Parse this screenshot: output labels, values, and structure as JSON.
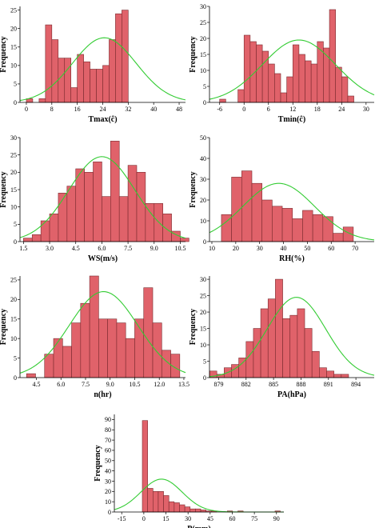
{
  "chart_data": [
    {
      "type": "bar",
      "xlabel": "Tmax(ĉ)",
      "ylabel": "Frequency",
      "xlim": [
        -2,
        50
      ],
      "ylim": [
        0,
        26
      ],
      "xticks": [
        0,
        8,
        16,
        24,
        32,
        40,
        48
      ],
      "yticks": [
        0,
        5,
        10,
        15,
        20,
        25
      ],
      "bins": {
        "start": 0,
        "width": 2
      },
      "values": [
        1,
        0,
        1,
        21,
        17,
        12,
        12,
        4,
        13,
        11,
        9,
        9,
        10,
        17,
        24,
        25,
        0
      ],
      "fit": {
        "mean": 24.5,
        "sd": 10.0,
        "peak": 17.5
      }
    },
    {
      "type": "bar",
      "xlabel": "Tmin(ĉ)",
      "ylabel": "Frequency",
      "xlim": [
        -8.5,
        32
      ],
      "ylim": [
        0,
        30
      ],
      "xticks": [
        -6,
        0,
        6,
        12,
        18,
        24,
        30
      ],
      "yticks": [
        0,
        5,
        10,
        15,
        20,
        25,
        30
      ],
      "bins": {
        "start": -6,
        "width": 1.5
      },
      "values": [
        1,
        0,
        0,
        4,
        21,
        19,
        18,
        16,
        12,
        9,
        3,
        8,
        18,
        15,
        13,
        12,
        19,
        17,
        29,
        11,
        8,
        2
      ],
      "fit": {
        "mean": 13.5,
        "sd": 9.0,
        "peak": 19.5
      }
    },
    {
      "type": "bar",
      "xlabel": "WS(m/s)",
      "ylabel": "Frequency",
      "xlim": [
        1.3,
        10.8
      ],
      "ylim": [
        0,
        30
      ],
      "xticks": [
        1.5,
        3.0,
        4.5,
        6.0,
        7.5,
        9.0,
        10.5
      ],
      "yticks": [
        0,
        5,
        10,
        15,
        20,
        25,
        30
      ],
      "bins": {
        "start": 1.5,
        "width": 0.5
      },
      "values": [
        1,
        2,
        6,
        8,
        14,
        16,
        21,
        20,
        23,
        13,
        29,
        13,
        22,
        20,
        11,
        11,
        8,
        3,
        1
      ],
      "fit": {
        "mean": 6.0,
        "sd": 1.9,
        "peak": 24.5
      }
    },
    {
      "type": "bar",
      "xlabel": "RH(%)",
      "ylabel": "Frequency",
      "xlim": [
        9,
        78
      ],
      "ylim": [
        0,
        50
      ],
      "xticks": [
        10,
        20,
        30,
        40,
        50,
        60,
        70
      ],
      "yticks": [
        0,
        10,
        20,
        30,
        40,
        50
      ],
      "bins": {
        "start": 14,
        "width": 4.25
      },
      "values": [
        13,
        31,
        34,
        28,
        20,
        17,
        16,
        11,
        15,
        13,
        12,
        4,
        7
      ],
      "fit": {
        "mean": 38,
        "sd": 15,
        "peak": 28
      }
    },
    {
      "type": "bar",
      "xlabel": "n(hr)",
      "ylabel": "Frequency",
      "xlim": [
        3.5,
        13.6
      ],
      "ylim": [
        0,
        26
      ],
      "xticks": [
        4.5,
        6.0,
        7.5,
        9.0,
        10.5,
        12.0,
        13.5
      ],
      "yticks": [
        0,
        5,
        10,
        15,
        20,
        25
      ],
      "bins": {
        "start": 3.9,
        "width": 0.55
      },
      "values": [
        1,
        0,
        6,
        10,
        8,
        14,
        19,
        26,
        15,
        15,
        14,
        10,
        15,
        23,
        14,
        7,
        6
      ],
      "fit": {
        "mean": 8.6,
        "sd": 2.1,
        "peak": 22
      }
    },
    {
      "type": "bar",
      "xlabel": "PA(hPa)",
      "ylabel": "Frequency",
      "xlim": [
        878,
        896
      ],
      "ylim": [
        0,
        31
      ],
      "xticks": [
        879,
        882,
        885,
        888,
        891,
        894
      ],
      "yticks": [
        0,
        5,
        10,
        15,
        20,
        25,
        30
      ],
      "bins": {
        "start": 878,
        "width": 0.8
      },
      "values": [
        2,
        1,
        3,
        4,
        6,
        11,
        15,
        21,
        24,
        30,
        18,
        19,
        21,
        15,
        8,
        3,
        2,
        1,
        1,
        0,
        0
      ],
      "fit": {
        "mean": 887.5,
        "sd": 3.2,
        "peak": 24.5
      }
    },
    {
      "type": "bar",
      "xlabel": "P(mm)",
      "ylabel": "Frequency",
      "xlim": [
        -20,
        95
      ],
      "ylim": [
        0,
        95
      ],
      "xticks": [
        -15,
        0,
        15,
        30,
        45,
        60,
        75,
        90
      ],
      "yticks": [
        0,
        10,
        20,
        30,
        40,
        50,
        60,
        70,
        80,
        90
      ],
      "bins": {
        "start": -1,
        "width": 3.6
      },
      "values": [
        89,
        23,
        20,
        20,
        16,
        10,
        9,
        7,
        5,
        3,
        3,
        2,
        1,
        1,
        0,
        0,
        1,
        0,
        1,
        0,
        0,
        0,
        0,
        0,
        0,
        1
      ],
      "fit": {
        "mean": 12,
        "sd": 14,
        "peak": 32
      }
    }
  ]
}
